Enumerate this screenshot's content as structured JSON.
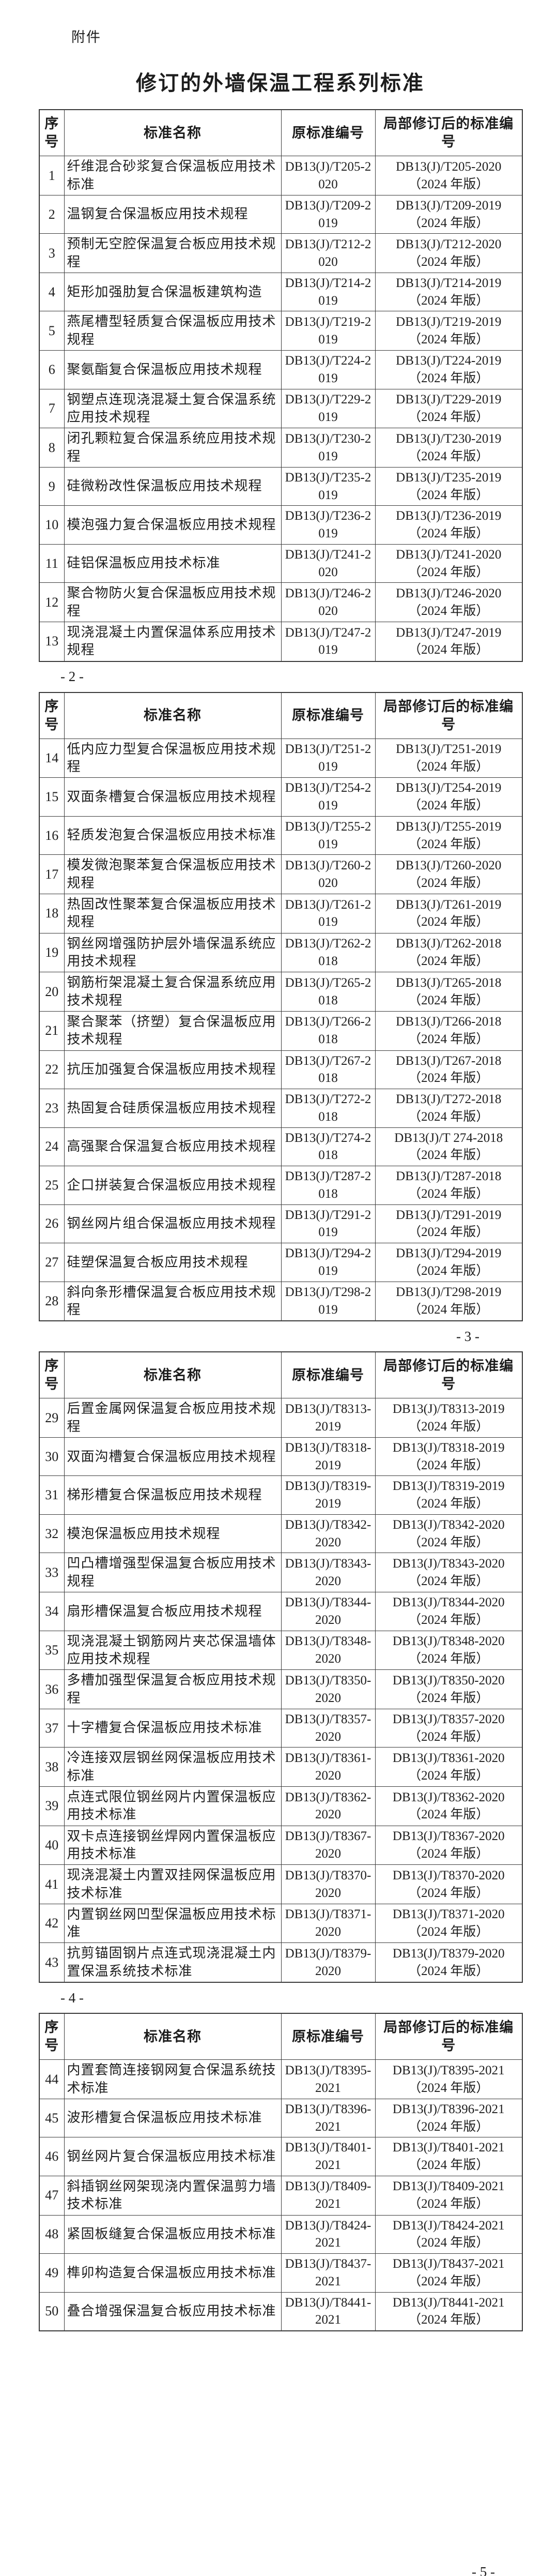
{
  "attachment_label": "附件",
  "title": "修订的外墙保温工程系列标准",
  "columns": [
    "序号",
    "标准名称",
    "原标准编号",
    "局部修订后的标准编号"
  ],
  "edition_suffix": "（2024 年版）",
  "page_markers": [
    "- 2 -",
    "- 3 -",
    "- 4 -",
    "- 5 -"
  ],
  "tables": [
    {
      "rows": [
        {
          "no": "1",
          "name": "纤维混合砂浆复合保温板应用技术标准",
          "old": "DB13(J)/T205-2020",
          "revised": "DB13(J)/T205-2020"
        },
        {
          "no": "2",
          "name": "温钢复合保温板应用技术规程",
          "old": "DB13(J)/T209-2019",
          "revised": "DB13(J)/T209-2019"
        },
        {
          "no": "3",
          "name": "预制无空腔保温复合板应用技术规程",
          "old": "DB13(J)/T212-2020",
          "revised": "DB13(J)/T212-2020"
        },
        {
          "no": "4",
          "name": "矩形加强肋复合保温板建筑构造",
          "old": "DB13(J)/T214-2019",
          "revised": "DB13(J)/T214-2019"
        },
        {
          "no": "5",
          "name": "燕尾槽型轻质复合保温板应用技术规程",
          "old": "DB13(J)/T219-2019",
          "revised": "DB13(J)/T219-2019"
        },
        {
          "no": "6",
          "name": "聚氨酯复合保温板应用技术规程",
          "old": "DB13(J)/T224-2019",
          "revised": "DB13(J)/T224-2019"
        },
        {
          "no": "7",
          "name": "钢塑点连现浇混凝土复合保温系统应用技术规程",
          "old": "DB13(J)/T229-2019",
          "revised": "DB13(J)/T229-2019"
        },
        {
          "no": "8",
          "name": "闭孔颗粒复合保温系统应用技术规程",
          "old": "DB13(J)/T230-2019",
          "revised": "DB13(J)/T230-2019"
        },
        {
          "no": "9",
          "name": "硅微粉改性保温板应用技术规程",
          "old": "DB13(J)/T235-2019",
          "revised": "DB13(J)/T235-2019"
        },
        {
          "no": "10",
          "name": "模泡强力复合保温板应用技术规程",
          "old": "DB13(J)/T236-2019",
          "revised": "DB13(J)/T236-2019"
        },
        {
          "no": "11",
          "name": "硅铝保温板应用技术标准",
          "old": "DB13(J)/T241-2020",
          "revised": "DB13(J)/T241-2020"
        },
        {
          "no": "12",
          "name": "聚合物防火复合保温板应用技术规程",
          "old": "DB13(J)/T246-2020",
          "revised": "DB13(J)/T246-2020"
        },
        {
          "no": "13",
          "name": "现浇混凝土内置保温体系应用技术规程",
          "old": "DB13(J)/T247-2019",
          "revised": "DB13(J)/T247-2019"
        }
      ]
    },
    {
      "rows": [
        {
          "no": "14",
          "name": "低内应力型复合保温板应用技术规程",
          "old": "DB13(J)/T251-2019",
          "revised": "DB13(J)/T251-2019"
        },
        {
          "no": "15",
          "name": "双面条槽复合保温板应用技术规程",
          "old": "DB13(J)/T254-2019",
          "revised": "DB13(J)/T254-2019"
        },
        {
          "no": "16",
          "name": "轻质发泡复合保温板应用技术标准",
          "old": "DB13(J)/T255-2019",
          "revised": "DB13(J)/T255-2019"
        },
        {
          "no": "17",
          "name": "模发微泡聚苯复合保温板应用技术规程",
          "old": "DB13(J)/T260-2020",
          "revised": "DB13(J)/T260-2020"
        },
        {
          "no": "18",
          "name": "热固改性聚苯复合保温板应用技术规程",
          "old": "DB13(J)/T261-2019",
          "revised": "DB13(J)/T261-2019"
        },
        {
          "no": "19",
          "name": "钢丝网增强防护层外墙保温系统应用技术规程",
          "old": "DB13(J)/T262-2018",
          "revised": "DB13(J)/T262-2018"
        },
        {
          "no": "20",
          "name": "钢筋桁架混凝土复合保温系统应用技术规程",
          "old": "DB13(J)/T265-2018",
          "revised": "DB13(J)/T265-2018"
        },
        {
          "no": "21",
          "name": "聚合聚苯（挤塑）复合保温板应用技术规程",
          "old": "DB13(J)/T266-2018",
          "revised": "DB13(J)/T266-2018"
        },
        {
          "no": "22",
          "name": "抗压加强复合保温板应用技术规程",
          "old": "DB13(J)/T267-2018",
          "revised": "DB13(J)/T267-2018"
        },
        {
          "no": "23",
          "name": "热固复合硅质保温板应用技术规程",
          "old": "DB13(J)/T272-2018",
          "revised": "DB13(J)/T272-2018"
        },
        {
          "no": "24",
          "name": "高强聚合保温复合板应用技术规程",
          "old": "DB13(J)/T274-2018",
          "revised": "DB13(J)/T 274-2018"
        },
        {
          "no": "25",
          "name": "企口拼装复合保温板应用技术规程",
          "old": "DB13(J)/T287-2018",
          "revised": "DB13(J)/T287-2018"
        },
        {
          "no": "26",
          "name": "钢丝网片组合保温板应用技术规程",
          "old": "DB13(J)/T291-2019",
          "revised": "DB13(J)/T291-2019"
        },
        {
          "no": "27",
          "name": "硅塑保温复合板应用技术规程",
          "old": "DB13(J)/T294-2019",
          "revised": "DB13(J)/T294-2019"
        },
        {
          "no": "28",
          "name": "斜向条形槽保温复合板应用技术规程",
          "old": "DB13(J)/T298-2019",
          "revised": "DB13(J)/T298-2019"
        }
      ]
    },
    {
      "rows": [
        {
          "no": "29",
          "name": "后置金属网保温复合板应用技术规程",
          "old": "DB13(J)/T8313-2019",
          "revised": "DB13(J)/T8313-2019"
        },
        {
          "no": "30",
          "name": "双面沟槽复合保温板应用技术规程",
          "old": "DB13(J)/T8318-2019",
          "revised": "DB13(J)/T8318-2019"
        },
        {
          "no": "31",
          "name": "梯形槽复合保温板应用技术规程",
          "old": "DB13(J)/T8319-2019",
          "revised": "DB13(J)/T8319-2019"
        },
        {
          "no": "32",
          "name": "模泡保温板应用技术规程",
          "old": "DB13(J)/T8342-2020",
          "revised": "DB13(J)/T8342-2020"
        },
        {
          "no": "33",
          "name": "凹凸槽增强型保温复合板应用技术规程",
          "old": "DB13(J)/T8343-2020",
          "revised": "DB13(J)/T8343-2020"
        },
        {
          "no": "34",
          "name": "扇形槽保温复合板应用技术规程",
          "old": "DB13(J)/T8344-2020",
          "revised": "DB13(J)/T8344-2020"
        },
        {
          "no": "35",
          "name": "现浇混凝土钢筋网片夹芯保温墙体应用技术规程",
          "old": "DB13(J)/T8348-2020",
          "revised": "DB13(J)/T8348-2020"
        },
        {
          "no": "36",
          "name": "多槽加强型保温复合板应用技术规程",
          "old": "DB13(J)/T8350-2020",
          "revised": "DB13(J)/T8350-2020"
        },
        {
          "no": "37",
          "name": "十字槽复合保温板应用技术标准",
          "old": "DB13(J)/T8357-2020",
          "revised": "DB13(J)/T8357-2020"
        },
        {
          "no": "38",
          "name": "冷连接双层钢丝网保温板应用技术标准",
          "old": "DB13(J)/T8361-2020",
          "revised": "DB13(J)/T8361-2020"
        },
        {
          "no": "39",
          "name": "点连式限位钢丝网片内置保温板应用技术标准",
          "old": "DB13(J)/T8362-2020",
          "revised": "DB13(J)/T8362-2020"
        },
        {
          "no": "40",
          "name": "双卡点连接钢丝焊网内置保温板应用技术标准",
          "old": "DB13(J)/T8367-2020",
          "revised": "DB13(J)/T8367-2020"
        },
        {
          "no": "41",
          "name": "现浇混凝土内置双挂网保温板应用技术标准",
          "old": "DB13(J)/T8370-2020",
          "revised": "DB13(J)/T8370-2020"
        },
        {
          "no": "42",
          "name": "内置钢丝网凹型保温板应用技术标准",
          "old": "DB13(J)/T8371-2020",
          "revised": "DB13(J)/T8371-2020"
        },
        {
          "no": "43",
          "name": "抗剪锚固钢片点连式现浇混凝土内置保温系统技术标准",
          "old": "DB13(J)/T8379-2020",
          "revised": "DB13(J)/T8379-2020"
        }
      ]
    },
    {
      "rows": [
        {
          "no": "44",
          "name": "内置套筒连接钢网复合保温系统技术标准",
          "old": "DB13(J)/T8395-2021",
          "revised": "DB13(J)/T8395-2021"
        },
        {
          "no": "45",
          "name": "波形槽复合保温板应用技术标准",
          "old": "DB13(J)/T8396-2021",
          "revised": "DB13(J)/T8396-2021"
        },
        {
          "no": "46",
          "name": "钢丝网片复合保温板应用技术标准",
          "old": "DB13(J)/T8401-2021",
          "revised": "DB13(J)/T8401-2021"
        },
        {
          "no": "47",
          "name": "斜插钢丝网架现浇内置保温剪力墙技术标准",
          "old": "DB13(J)/T8409-2021",
          "revised": "DB13(J)/T8409-2021"
        },
        {
          "no": "48",
          "name": "紧固板缝复合保温板应用技术标准",
          "old": "DB13(J)/T8424-2021",
          "revised": "DB13(J)/T8424-2021"
        },
        {
          "no": "49",
          "name": "榫卯构造复合保温板应用技术标准",
          "old": "DB13(J)/T8437-2021",
          "revised": "DB13(J)/T8437-2021"
        },
        {
          "no": "50",
          "name": "叠合增强保温复合板应用技术标准",
          "old": "DB13(J)/T8441-2021",
          "revised": "DB13(J)/T8441-2021"
        }
      ]
    }
  ]
}
